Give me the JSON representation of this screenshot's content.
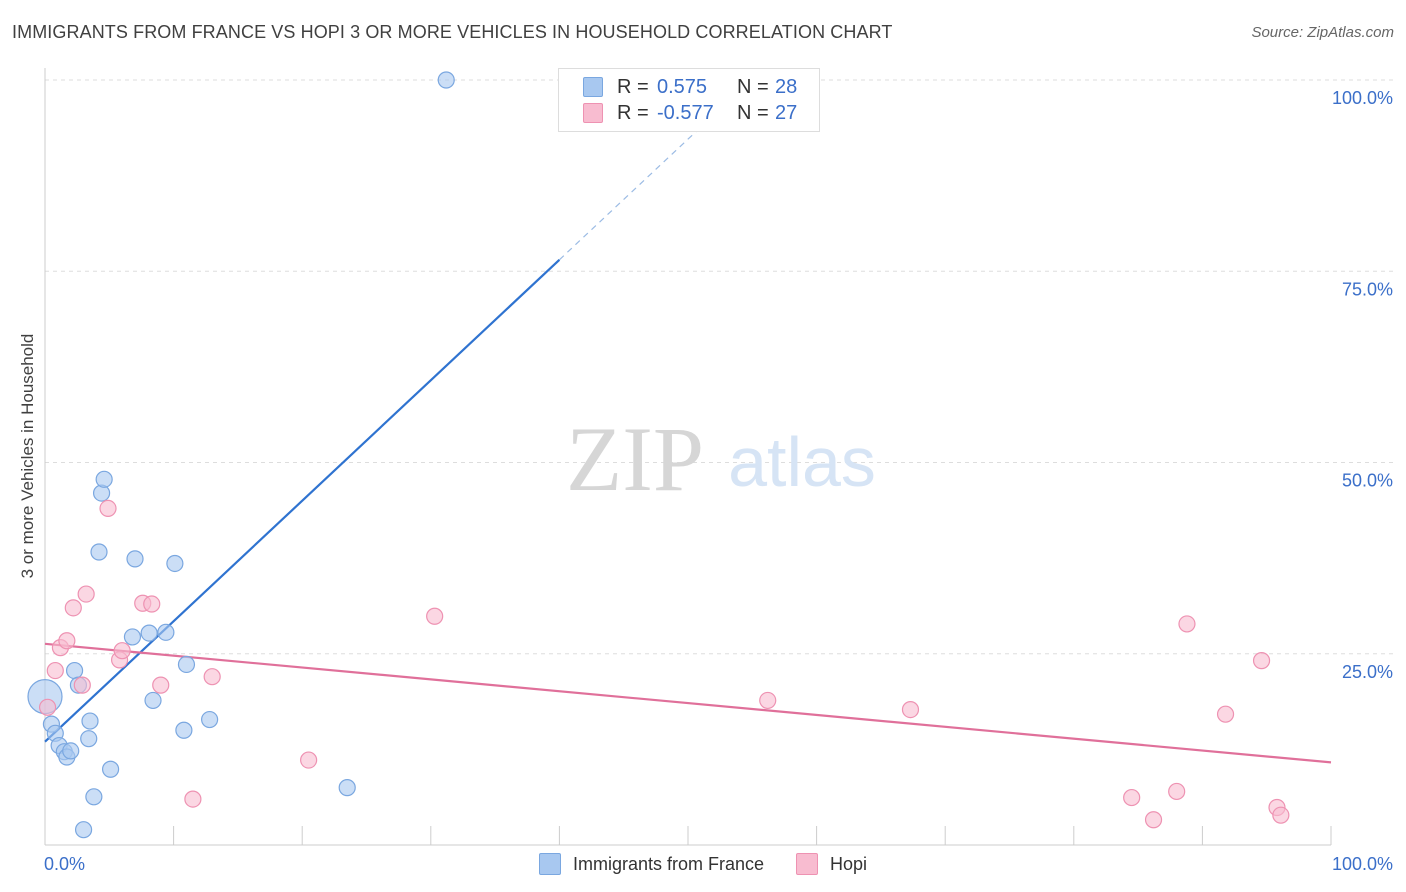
{
  "header": {
    "title": "IMMIGRANTS FROM FRANCE VS HOPI 3 OR MORE VEHICLES IN HOUSEHOLD CORRELATION CHART",
    "source": "Source: ZipAtlas.com"
  },
  "watermark": {
    "part1": "ZIP",
    "part2": "atlas"
  },
  "legend": {
    "rows": [
      {
        "r_label": "R =",
        "r_value": "0.575",
        "n_label": "N =",
        "n_value": "28",
        "color": "#a8c8f0",
        "border": "#7aa7e0"
      },
      {
        "r_label": "R =",
        "r_value": "-0.577",
        "n_label": "N =",
        "n_value": "27",
        "color": "#f8bcd0",
        "border": "#ee92b2"
      }
    ]
  },
  "chart_data": {
    "type": "scatter",
    "title": "IMMIGRANTS FROM FRANCE VS HOPI 3 OR MORE VEHICLES IN HOUSEHOLD CORRELATION CHART",
    "xlabel": "",
    "ylabel": "3 or more Vehicles in Household",
    "xlim": [
      0,
      100
    ],
    "ylim": [
      0,
      100
    ],
    "x_tick_labels": [
      "0.0%",
      "100.0%"
    ],
    "y_tick_values": [
      25,
      50,
      75,
      100
    ],
    "y_tick_labels": [
      "25.0%",
      "50.0%",
      "75.0%",
      "100.0%"
    ],
    "grid": true,
    "legend_position": "top-center",
    "series": [
      {
        "name": "Immigrants from France",
        "color": "#a8c8f0",
        "stroke": "#7aa7e0",
        "line_color": "#2f73d0",
        "points": [
          {
            "x": 0.0,
            "y": 19.4,
            "big": true
          },
          {
            "x": 0.5,
            "y": 15.8
          },
          {
            "x": 0.8,
            "y": 14.6
          },
          {
            "x": 1.1,
            "y": 13.0
          },
          {
            "x": 1.5,
            "y": 12.2
          },
          {
            "x": 1.7,
            "y": 11.5
          },
          {
            "x": 2.0,
            "y": 12.3
          },
          {
            "x": 2.3,
            "y": 22.8
          },
          {
            "x": 2.6,
            "y": 20.9
          },
          {
            "x": 3.0,
            "y": 2.0
          },
          {
            "x": 3.4,
            "y": 13.9
          },
          {
            "x": 3.5,
            "y": 16.2
          },
          {
            "x": 3.8,
            "y": 6.3
          },
          {
            "x": 4.2,
            "y": 38.3
          },
          {
            "x": 4.4,
            "y": 46.0
          },
          {
            "x": 4.6,
            "y": 47.8
          },
          {
            "x": 5.1,
            "y": 9.9
          },
          {
            "x": 6.8,
            "y": 27.2
          },
          {
            "x": 7.0,
            "y": 37.4
          },
          {
            "x": 8.1,
            "y": 27.7
          },
          {
            "x": 8.4,
            "y": 18.9
          },
          {
            "x": 9.4,
            "y": 27.8
          },
          {
            "x": 10.1,
            "y": 36.8
          },
          {
            "x": 10.8,
            "y": 15.0
          },
          {
            "x": 11.0,
            "y": 23.6
          },
          {
            "x": 12.8,
            "y": 16.4
          },
          {
            "x": 23.5,
            "y": 7.5
          },
          {
            "x": 31.2,
            "y": 100.0
          }
        ],
        "trend": {
          "x1": 0.0,
          "y1": 13.5,
          "x2": 40.0,
          "y2": 76.5,
          "dash_x2": 53.0,
          "dash_y2": 97.0
        }
      },
      {
        "name": "Hopi",
        "color": "#f8bcd0",
        "stroke": "#ee92b2",
        "line_color": "#e0709a",
        "points": [
          {
            "x": 0.2,
            "y": 18.0
          },
          {
            "x": 0.8,
            "y": 22.8
          },
          {
            "x": 1.2,
            "y": 25.8
          },
          {
            "x": 1.7,
            "y": 26.7
          },
          {
            "x": 2.2,
            "y": 31.0
          },
          {
            "x": 2.9,
            "y": 20.9
          },
          {
            "x": 3.2,
            "y": 32.8
          },
          {
            "x": 4.9,
            "y": 44.0
          },
          {
            "x": 5.8,
            "y": 24.2
          },
          {
            "x": 6.0,
            "y": 25.4
          },
          {
            "x": 7.6,
            "y": 31.6
          },
          {
            "x": 8.3,
            "y": 31.5
          },
          {
            "x": 9.0,
            "y": 20.9
          },
          {
            "x": 11.5,
            "y": 6.0
          },
          {
            "x": 13.0,
            "y": 22.0
          },
          {
            "x": 20.5,
            "y": 11.1
          },
          {
            "x": 30.3,
            "y": 29.9
          },
          {
            "x": 56.2,
            "y": 18.9
          },
          {
            "x": 67.3,
            "y": 17.7
          },
          {
            "x": 84.5,
            "y": 6.2
          },
          {
            "x": 86.2,
            "y": 3.3
          },
          {
            "x": 88.0,
            "y": 7.0
          },
          {
            "x": 88.8,
            "y": 28.9
          },
          {
            "x": 91.8,
            "y": 17.1
          },
          {
            "x": 94.6,
            "y": 24.1
          },
          {
            "x": 95.8,
            "y": 4.9
          },
          {
            "x": 96.1,
            "y": 3.9
          }
        ],
        "trend": {
          "x1": 0.0,
          "y1": 26.3,
          "x2": 100.0,
          "y2": 10.8
        }
      }
    ]
  }
}
